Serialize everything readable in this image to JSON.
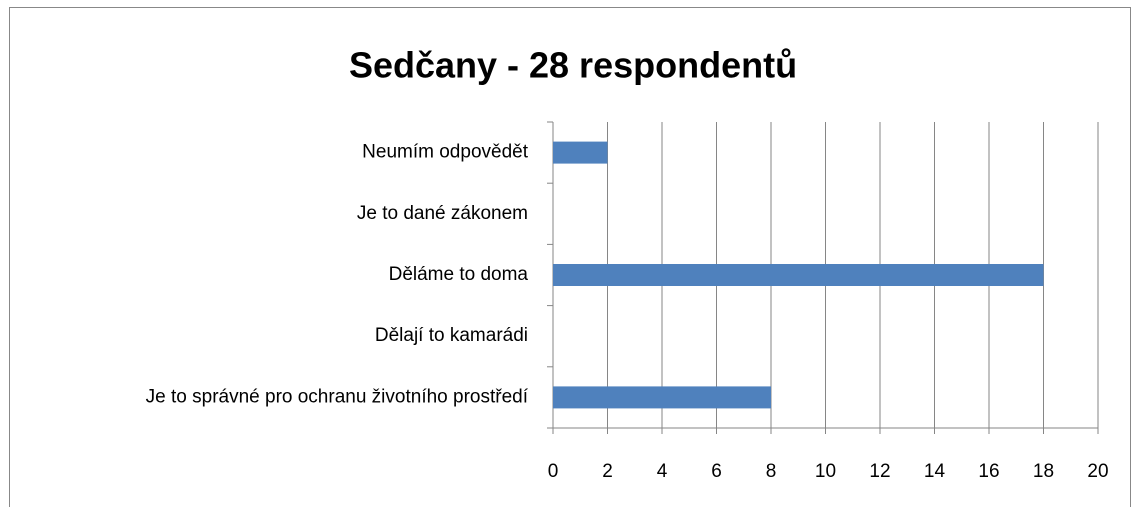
{
  "chart_data": {
    "type": "bar",
    "orientation": "horizontal",
    "title": "Sedčany - 28 respondentů",
    "categories": [
      "Neumím odpovědět",
      "Je to dané zákonem",
      "Děláme to doma",
      "Dělají to kamarádi",
      "Je to správné pro ochranu životního prostředí"
    ],
    "values": [
      2,
      0,
      18,
      0,
      8
    ],
    "color": "#4f81bd",
    "xlim": [
      0,
      20
    ],
    "xticks": [
      0,
      2,
      4,
      6,
      8,
      10,
      12,
      14,
      16,
      18,
      20
    ],
    "grid": true
  }
}
